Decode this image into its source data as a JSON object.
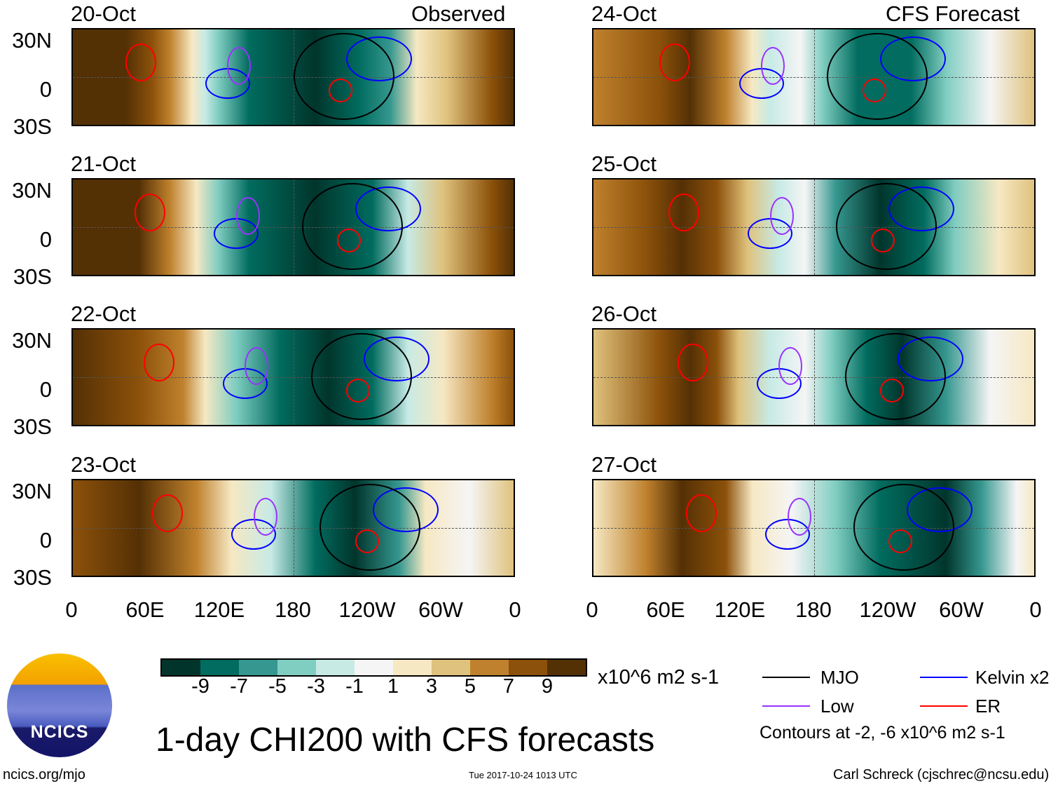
{
  "observed_label": "Observed",
  "forecast_label": "CFS Forecast",
  "observed_dates": [
    "20-Oct",
    "21-Oct",
    "22-Oct",
    "23-Oct"
  ],
  "forecast_dates": [
    "24-Oct",
    "25-Oct",
    "26-Oct",
    "27-Oct"
  ],
  "lat_ticks": [
    "30N",
    "0",
    "30S"
  ],
  "lon_ticks": [
    "0",
    "60E",
    "120E",
    "180",
    "120W",
    "60W",
    "0"
  ],
  "colorbar": {
    "colors": [
      "#01352c",
      "#016c5f",
      "#35978f",
      "#80cdc1",
      "#c7eae5",
      "#f5f5f5",
      "#f6e8c3",
      "#dfc27d",
      "#bf812d",
      "#8c510a",
      "#543005"
    ],
    "labels": [
      "-9",
      "-7",
      "-5",
      "-3",
      "-1",
      "1",
      "3",
      "5",
      "7",
      "9"
    ],
    "units": "x10^6 m2 s-1"
  },
  "legend": {
    "mjo": "MJO",
    "kelvin": "Kelvin x2",
    "low": "Low",
    "er": "ER",
    "mjo_color": "#000000",
    "kelvin_color": "#0000ff",
    "low_color": "#9933ff",
    "er_color": "#ff0000",
    "contours": "Contours at -2, -6 x10^6 m2 s-1"
  },
  "title": "1-day CHI200 with CFS forecasts",
  "logo_text": "NCICS",
  "url": "ncics.org/mjo",
  "timestamp": "Tue 2017-10-24 1013 UTC",
  "author": "Carl Schreck (cjschrec@ncsu.edu)",
  "storm_label": "27"
}
